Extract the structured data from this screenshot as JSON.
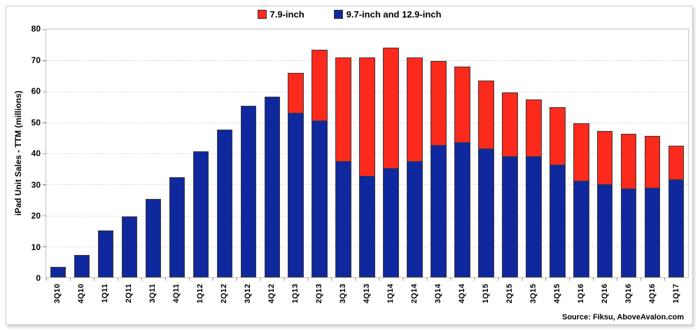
{
  "chart_data": {
    "type": "bar",
    "stacked": true,
    "title": "",
    "xlabel": "",
    "ylabel": "iPad Unit Sales - TTM (millions)",
    "ylim": [
      0,
      80
    ],
    "ytick_step": 10,
    "grid": true,
    "legend_position": "top-center",
    "source_note": "Source: Fiksu, AboveAvalon.com",
    "categories": [
      "3Q10",
      "4Q10",
      "1Q11",
      "2Q11",
      "3Q11",
      "4Q11",
      "1Q12",
      "2Q12",
      "3Q12",
      "4Q12",
      "1Q13",
      "2Q13",
      "3Q13",
      "4Q13",
      "1Q14",
      "2Q14",
      "3Q14",
      "4Q14",
      "1Q15",
      "2Q15",
      "3Q15",
      "4Q15",
      "1Q16",
      "2Q16",
      "3Q16",
      "4Q16",
      "1Q17"
    ],
    "series": [
      {
        "name": "7.9-inch",
        "color": "#fb2a1c",
        "values": [
          0,
          0,
          0,
          0,
          0,
          0,
          0,
          0,
          0,
          0,
          13.0,
          23.1,
          33.7,
          38.5,
          39.1,
          33.6,
          27.3,
          24.6,
          22.0,
          20.8,
          18.5,
          18.7,
          18.8,
          17.4,
          17.8,
          16.9,
          11.0
        ]
      },
      {
        "name": "9.7-inch and 12.9-inch",
        "color": "#10289e",
        "values": [
          3.3,
          7.3,
          15.1,
          19.6,
          25.4,
          32.3,
          40.6,
          47.8,
          55.3,
          58.4,
          52.9,
          50.4,
          37.3,
          32.5,
          35.1,
          37.4,
          42.5,
          43.4,
          41.4,
          38.9,
          38.8,
          36.2,
          30.9,
          29.8,
          28.5,
          28.8,
          31.5
        ]
      }
    ]
  },
  "colors": {
    "bar_border": "#3b3b3b",
    "gridline": "#dcdcdc",
    "frame_border": "#c9c9c9"
  }
}
